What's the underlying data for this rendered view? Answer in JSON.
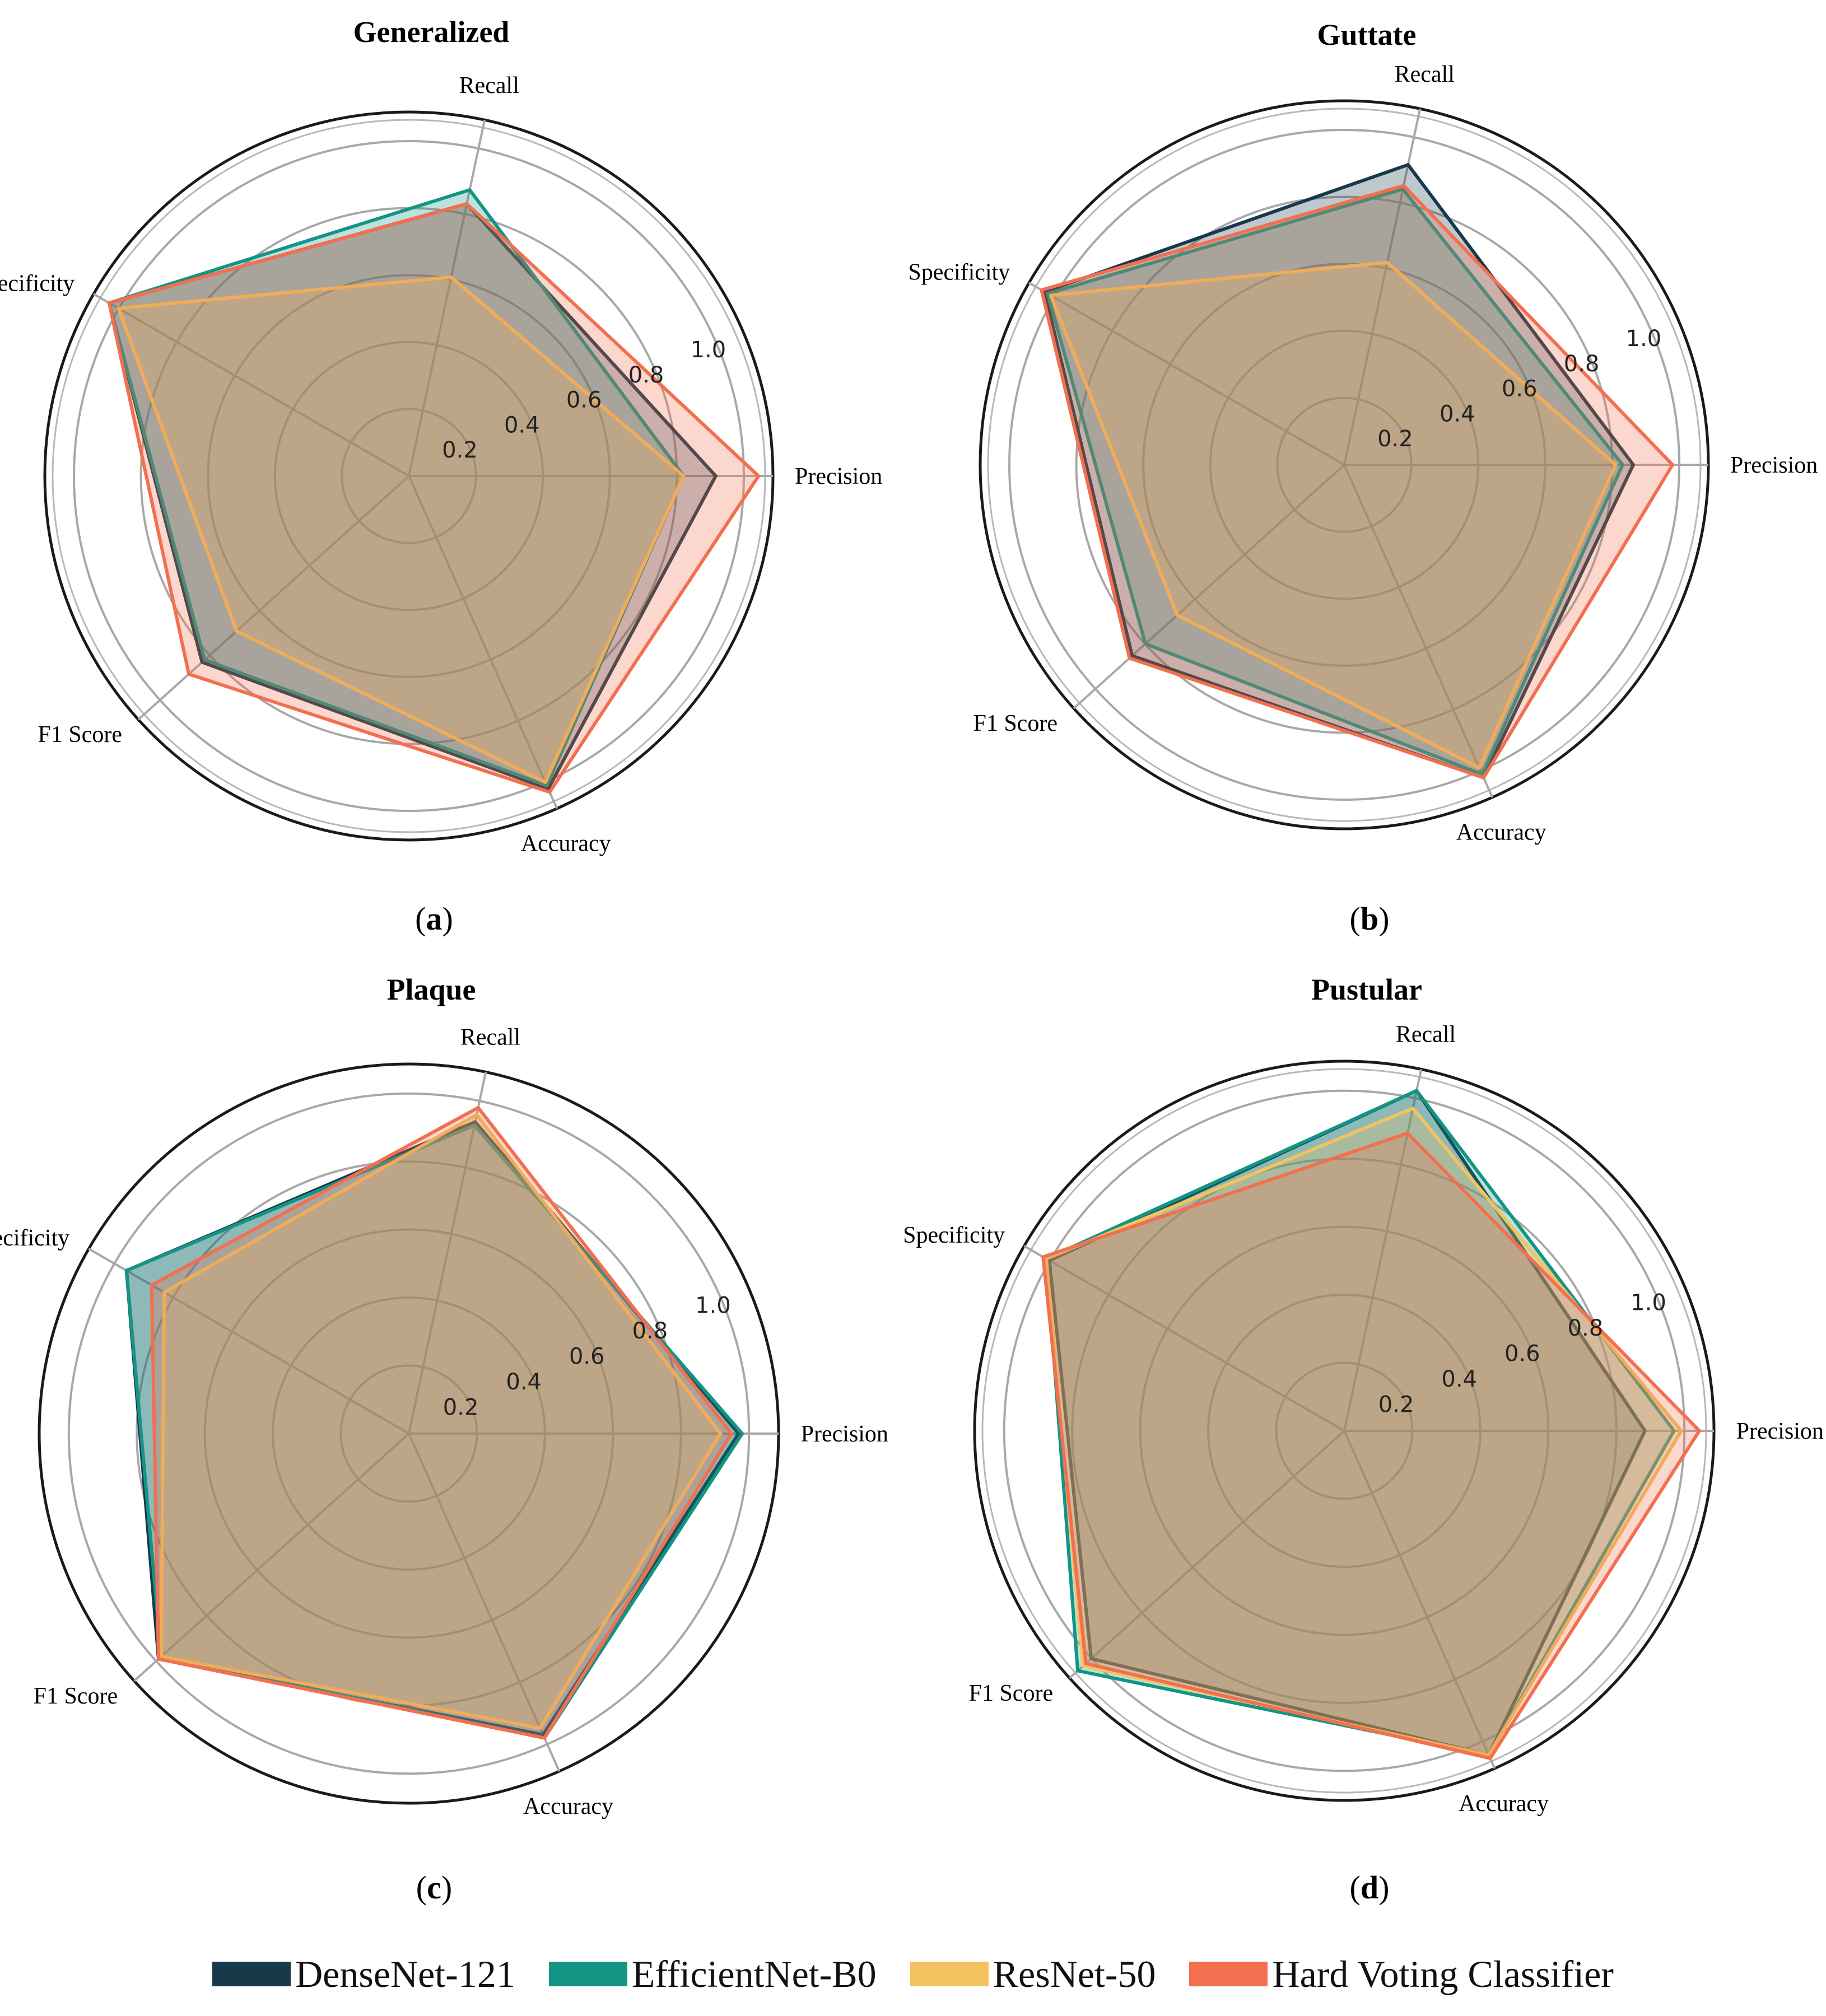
{
  "chart_data": [
    {
      "type": "radar",
      "panel_label": "a",
      "title": "Generalized",
      "axes": [
        "Precision",
        "Recall",
        "Specificity",
        "F1 Score",
        "Accuracy"
      ],
      "rlim": [
        0,
        1.0
      ],
      "ticks": [
        "0.2",
        "0.4",
        "0.6",
        "0.8",
        "1.0"
      ],
      "series": [
        {
          "name": "DenseNet-121",
          "values": [
            0.86,
            0.78,
            0.97,
            0.78,
            0.96
          ]
        },
        {
          "name": "EfficientNet-B0",
          "values": [
            0.77,
            0.82,
            0.97,
            0.77,
            0.95
          ]
        },
        {
          "name": "ResNet-50",
          "values": [
            0.77,
            0.57,
            0.94,
            0.65,
            0.94
          ]
        },
        {
          "name": "Hard Voting Classifier",
          "values": [
            0.98,
            0.78,
            0.97,
            0.83,
            0.97
          ]
        }
      ]
    },
    {
      "type": "radar",
      "panel_label": "b",
      "title": "Guttate",
      "axes": [
        "Precision",
        "Recall",
        "Specificity",
        "F1 Score",
        "Accuracy"
      ],
      "rlim": [
        0,
        1.0
      ],
      "ticks": [
        "0.2",
        "0.4",
        "0.6",
        "0.8",
        "1.0"
      ],
      "series": [
        {
          "name": "DenseNet-121",
          "values": [
            0.81,
            0.86,
            0.97,
            0.8,
            0.96
          ]
        },
        {
          "name": "EfficientNet-B0",
          "values": [
            0.78,
            0.79,
            0.96,
            0.75,
            0.95
          ]
        },
        {
          "name": "ResNet-50",
          "values": [
            0.76,
            0.58,
            0.95,
            0.63,
            0.93
          ]
        },
        {
          "name": "Hard Voting Classifier",
          "values": [
            0.92,
            0.8,
            0.98,
            0.81,
            0.96
          ]
        }
      ]
    },
    {
      "type": "radar",
      "panel_label": "c",
      "title": "Plaque",
      "axes": [
        "Precision",
        "Recall",
        "Specificity",
        "F1 Score",
        "Accuracy"
      ],
      "rlim": [
        0,
        1.0
      ],
      "ticks": [
        "0.2",
        "0.4",
        "0.6",
        "0.8",
        "1.0"
      ],
      "series": [
        {
          "name": "DenseNet-121",
          "values": [
            0.91,
            0.88,
            0.9,
            0.93,
            0.91
          ]
        },
        {
          "name": "EfficientNet-B0",
          "values": [
            0.92,
            0.87,
            0.9,
            0.92,
            0.92
          ]
        },
        {
          "name": "ResNet-50",
          "values": [
            0.86,
            0.9,
            0.78,
            0.92,
            0.89
          ]
        },
        {
          "name": "Hard Voting Classifier",
          "values": [
            0.89,
            0.92,
            0.82,
            0.93,
            0.92
          ]
        }
      ]
    },
    {
      "type": "radar",
      "panel_label": "d",
      "title": "Pustular",
      "axes": [
        "Precision",
        "Recall",
        "Specificity",
        "F1 Score",
        "Accuracy"
      ],
      "rlim": [
        0,
        1.0
      ],
      "ticks": [
        "0.2",
        "0.4",
        "0.6",
        "0.8",
        "1.0"
      ],
      "series": [
        {
          "name": "DenseNet-121",
          "values": [
            0.83,
            0.96,
            0.94,
            0.94,
            0.98
          ]
        },
        {
          "name": "EfficientNet-B0",
          "values": [
            0.91,
            0.96,
            0.95,
            0.99,
            0.98
          ]
        },
        {
          "name": "ResNet-50",
          "values": [
            0.93,
            0.91,
            0.95,
            0.97,
            0.98
          ]
        },
        {
          "name": "Hard Voting Classifier",
          "values": [
            0.98,
            0.84,
            0.96,
            0.96,
            0.99
          ]
        }
      ]
    }
  ],
  "legend": [
    {
      "label": "DenseNet-121",
      "color": "#17394a"
    },
    {
      "label": "EfficientNet-B0",
      "color": "#139485"
    },
    {
      "label": "ResNet-50",
      "color": "#f2c35e"
    },
    {
      "label": "Hard Voting Classifier",
      "color": "#f26f50"
    }
  ]
}
